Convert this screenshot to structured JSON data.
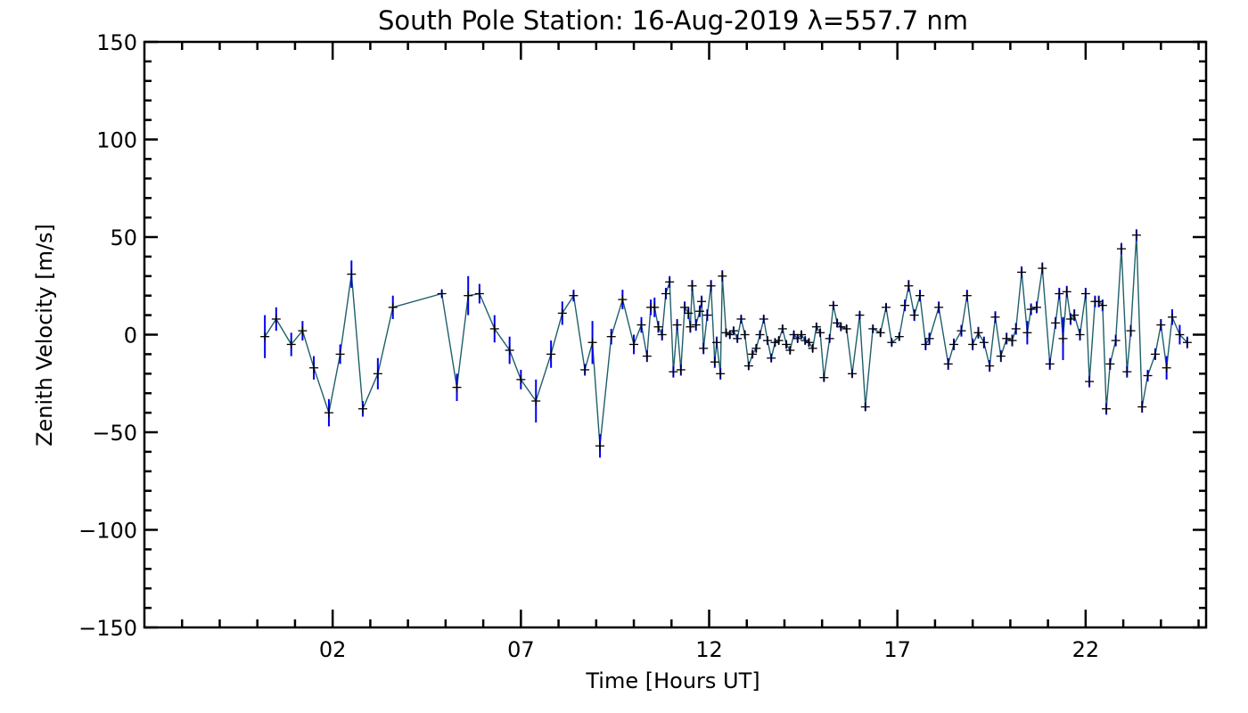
{
  "chart_data": {
    "type": "scatter",
    "title": "South Pole Station: 16-Aug-2019 λ=557.7 nm",
    "xlabel": "Time [Hours UT]",
    "ylabel": "Zenith Velocity [m/s]",
    "xlim": [
      -3.0,
      25.2
    ],
    "ylim": [
      -150,
      150
    ],
    "x_ticks": [
      2,
      7,
      12,
      17,
      22
    ],
    "x_tick_labels": [
      "02",
      "07",
      "12",
      "17",
      "22"
    ],
    "y_ticks": [
      150,
      100,
      50,
      0,
      -50,
      -100,
      -150
    ],
    "y_tick_labels": [
      "150",
      "100",
      "50",
      "0",
      "−50",
      "−100",
      "−150"
    ],
    "grid": false,
    "legend": "none",
    "colors": {
      "line": "#1f5f6a",
      "error_bar": "#0000ee",
      "marker": "#000000",
      "axes": "#000000"
    },
    "points": [
      {
        "x": 0.2,
        "y": -1,
        "err": 11
      },
      {
        "x": 0.5,
        "y": 8,
        "err": 6
      },
      {
        "x": 0.9,
        "y": -5,
        "err": 6
      },
      {
        "x": 1.2,
        "y": 2,
        "err": 5
      },
      {
        "x": 1.5,
        "y": -17,
        "err": 6
      },
      {
        "x": 1.9,
        "y": -40,
        "err": 7
      },
      {
        "x": 2.2,
        "y": -10,
        "err": 5
      },
      {
        "x": 2.5,
        "y": 31,
        "err": 7
      },
      {
        "x": 2.8,
        "y": -38,
        "err": 4
      },
      {
        "x": 3.2,
        "y": -20,
        "err": 8
      },
      {
        "x": 3.6,
        "y": 14,
        "err": 6
      },
      {
        "x": 4.9,
        "y": 21,
        "err": 2
      },
      {
        "x": 5.3,
        "y": -27,
        "err": 7
      },
      {
        "x": 5.6,
        "y": 20,
        "err": 10
      },
      {
        "x": 5.9,
        "y": 21,
        "err": 5
      },
      {
        "x": 6.3,
        "y": 3,
        "err": 7
      },
      {
        "x": 6.7,
        "y": -8,
        "err": 7
      },
      {
        "x": 7.0,
        "y": -23,
        "err": 5
      },
      {
        "x": 7.4,
        "y": -34,
        "err": 11
      },
      {
        "x": 7.8,
        "y": -10,
        "err": 7
      },
      {
        "x": 8.1,
        "y": 11,
        "err": 6
      },
      {
        "x": 8.4,
        "y": 20,
        "err": 3
      },
      {
        "x": 8.7,
        "y": -18,
        "err": 3
      },
      {
        "x": 8.9,
        "y": -4,
        "err": 11
      },
      {
        "x": 9.1,
        "y": -57,
        "err": 6
      },
      {
        "x": 9.4,
        "y": -1,
        "err": 4
      },
      {
        "x": 9.7,
        "y": 18,
        "err": 5
      },
      {
        "x": 10.0,
        "y": -5,
        "err": 5
      },
      {
        "x": 10.2,
        "y": 5,
        "err": 4
      },
      {
        "x": 10.35,
        "y": -11,
        "err": 3
      },
      {
        "x": 10.45,
        "y": 14,
        "err": 4
      },
      {
        "x": 10.55,
        "y": 14,
        "err": 5
      },
      {
        "x": 10.65,
        "y": 4,
        "err": 3
      },
      {
        "x": 10.75,
        "y": 0,
        "err": 3
      },
      {
        "x": 10.85,
        "y": 21,
        "err": 3
      },
      {
        "x": 10.95,
        "y": 27,
        "err": 3
      },
      {
        "x": 11.05,
        "y": -19,
        "err": 3
      },
      {
        "x": 11.15,
        "y": 5,
        "err": 3
      },
      {
        "x": 11.25,
        "y": -18,
        "err": 3
      },
      {
        "x": 11.35,
        "y": 14,
        "err": 3
      },
      {
        "x": 11.45,
        "y": 11,
        "err": 3
      },
      {
        "x": 11.5,
        "y": 4,
        "err": 3
      },
      {
        "x": 11.55,
        "y": 25,
        "err": 3
      },
      {
        "x": 11.65,
        "y": 5,
        "err": 3
      },
      {
        "x": 11.75,
        "y": 12,
        "err": 3
      },
      {
        "x": 11.8,
        "y": 17,
        "err": 3
      },
      {
        "x": 11.85,
        "y": -7,
        "err": 3
      },
      {
        "x": 11.95,
        "y": 10,
        "err": 3
      },
      {
        "x": 12.05,
        "y": 25,
        "err": 3
      },
      {
        "x": 12.15,
        "y": -14,
        "err": 3
      },
      {
        "x": 12.2,
        "y": -4,
        "err": 3
      },
      {
        "x": 12.3,
        "y": -20,
        "err": 3
      },
      {
        "x": 12.35,
        "y": 30,
        "err": 3
      },
      {
        "x": 12.45,
        "y": 1,
        "err": 2
      },
      {
        "x": 12.55,
        "y": 0,
        "err": 2
      },
      {
        "x": 12.65,
        "y": 2,
        "err": 2
      },
      {
        "x": 12.75,
        "y": -2,
        "err": 2
      },
      {
        "x": 12.85,
        "y": 8,
        "err": 2
      },
      {
        "x": 12.95,
        "y": 0,
        "err": 2
      },
      {
        "x": 13.05,
        "y": -16,
        "err": 2
      },
      {
        "x": 13.15,
        "y": -10,
        "err": 2
      },
      {
        "x": 13.25,
        "y": -7,
        "err": 2
      },
      {
        "x": 13.35,
        "y": 0,
        "err": 2
      },
      {
        "x": 13.45,
        "y": 8,
        "err": 2
      },
      {
        "x": 13.55,
        "y": -3,
        "err": 2
      },
      {
        "x": 13.65,
        "y": -12,
        "err": 2
      },
      {
        "x": 13.75,
        "y": -4,
        "err": 2
      },
      {
        "x": 13.85,
        "y": -3,
        "err": 2
      },
      {
        "x": 13.95,
        "y": 3,
        "err": 2
      },
      {
        "x": 14.05,
        "y": -5,
        "err": 2
      },
      {
        "x": 14.15,
        "y": -8,
        "err": 2
      },
      {
        "x": 14.25,
        "y": 0,
        "err": 2
      },
      {
        "x": 14.35,
        "y": -2,
        "err": 2
      },
      {
        "x": 14.45,
        "y": 0,
        "err": 2
      },
      {
        "x": 14.55,
        "y": -3,
        "err": 2
      },
      {
        "x": 14.65,
        "y": -4,
        "err": 2
      },
      {
        "x": 14.75,
        "y": -7,
        "err": 2
      },
      {
        "x": 14.85,
        "y": 4,
        "err": 2
      },
      {
        "x": 14.95,
        "y": 1,
        "err": 2
      },
      {
        "x": 15.05,
        "y": -22,
        "err": 2
      },
      {
        "x": 15.2,
        "y": -2,
        "err": 2
      },
      {
        "x": 15.3,
        "y": 15,
        "err": 2
      },
      {
        "x": 15.4,
        "y": 6,
        "err": 2
      },
      {
        "x": 15.5,
        "y": 4,
        "err": 2
      },
      {
        "x": 15.65,
        "y": 3,
        "err": 2
      },
      {
        "x": 15.8,
        "y": -20,
        "err": 2
      },
      {
        "x": 16.0,
        "y": 10,
        "err": 2
      },
      {
        "x": 16.15,
        "y": -37,
        "err": 2
      },
      {
        "x": 16.35,
        "y": 3,
        "err": 2
      },
      {
        "x": 16.55,
        "y": 1,
        "err": 2
      },
      {
        "x": 16.7,
        "y": 14,
        "err": 2
      },
      {
        "x": 16.85,
        "y": -4,
        "err": 2
      },
      {
        "x": 17.05,
        "y": -1,
        "err": 2
      },
      {
        "x": 17.2,
        "y": 15,
        "err": 3
      },
      {
        "x": 17.3,
        "y": 25,
        "err": 3
      },
      {
        "x": 17.45,
        "y": 10,
        "err": 3
      },
      {
        "x": 17.6,
        "y": 20,
        "err": 3
      },
      {
        "x": 17.75,
        "y": -5,
        "err": 3
      },
      {
        "x": 17.85,
        "y": -2,
        "err": 3
      },
      {
        "x": 18.1,
        "y": 14,
        "err": 3
      },
      {
        "x": 18.35,
        "y": -15,
        "err": 3
      },
      {
        "x": 18.5,
        "y": -5,
        "err": 3
      },
      {
        "x": 18.7,
        "y": 2,
        "err": 3
      },
      {
        "x": 18.85,
        "y": 20,
        "err": 3
      },
      {
        "x": 19.0,
        "y": -5,
        "err": 3
      },
      {
        "x": 19.15,
        "y": 1,
        "err": 3
      },
      {
        "x": 19.3,
        "y": -4,
        "err": 3
      },
      {
        "x": 19.45,
        "y": -16,
        "err": 3
      },
      {
        "x": 19.6,
        "y": 9,
        "err": 3
      },
      {
        "x": 19.75,
        "y": -11,
        "err": 3
      },
      {
        "x": 19.9,
        "y": -2,
        "err": 3
      },
      {
        "x": 20.05,
        "y": -3,
        "err": 3
      },
      {
        "x": 20.15,
        "y": 3,
        "err": 3
      },
      {
        "x": 20.3,
        "y": 32,
        "err": 3
      },
      {
        "x": 20.45,
        "y": 1,
        "err": 6
      },
      {
        "x": 20.55,
        "y": 13,
        "err": 3
      },
      {
        "x": 20.7,
        "y": 14,
        "err": 3
      },
      {
        "x": 20.85,
        "y": 34,
        "err": 3
      },
      {
        "x": 21.05,
        "y": -15,
        "err": 3
      },
      {
        "x": 21.2,
        "y": 6,
        "err": 3
      },
      {
        "x": 21.3,
        "y": 21,
        "err": 3
      },
      {
        "x": 21.4,
        "y": -2,
        "err": 11
      },
      {
        "x": 21.5,
        "y": 22,
        "err": 3
      },
      {
        "x": 21.6,
        "y": 8,
        "err": 3
      },
      {
        "x": 21.7,
        "y": 10,
        "err": 3
      },
      {
        "x": 21.85,
        "y": 0,
        "err": 3
      },
      {
        "x": 22.0,
        "y": 21,
        "err": 3
      },
      {
        "x": 22.1,
        "y": -24,
        "err": 3
      },
      {
        "x": 22.25,
        "y": 17,
        "err": 3
      },
      {
        "x": 22.35,
        "y": 17,
        "err": 3
      },
      {
        "x": 22.45,
        "y": 15,
        "err": 3
      },
      {
        "x": 22.55,
        "y": -38,
        "err": 3
      },
      {
        "x": 22.65,
        "y": -15,
        "err": 3
      },
      {
        "x": 22.8,
        "y": -3,
        "err": 3
      },
      {
        "x": 22.95,
        "y": 44,
        "err": 3
      },
      {
        "x": 23.1,
        "y": -19,
        "err": 3
      },
      {
        "x": 23.2,
        "y": 2,
        "err": 3
      },
      {
        "x": 23.35,
        "y": 51,
        "err": 3
      },
      {
        "x": 23.5,
        "y": -37,
        "err": 3
      },
      {
        "x": 23.65,
        "y": -21,
        "err": 3
      },
      {
        "x": 23.85,
        "y": -10,
        "err": 3
      },
      {
        "x": 24.0,
        "y": 5,
        "err": 3
      },
      {
        "x": 24.15,
        "y": -17,
        "err": 6
      },
      {
        "x": 24.3,
        "y": 9,
        "err": 4
      },
      {
        "x": 24.5,
        "y": 0,
        "err": 5
      },
      {
        "x": 24.7,
        "y": -4,
        "err": 3
      }
    ]
  }
}
